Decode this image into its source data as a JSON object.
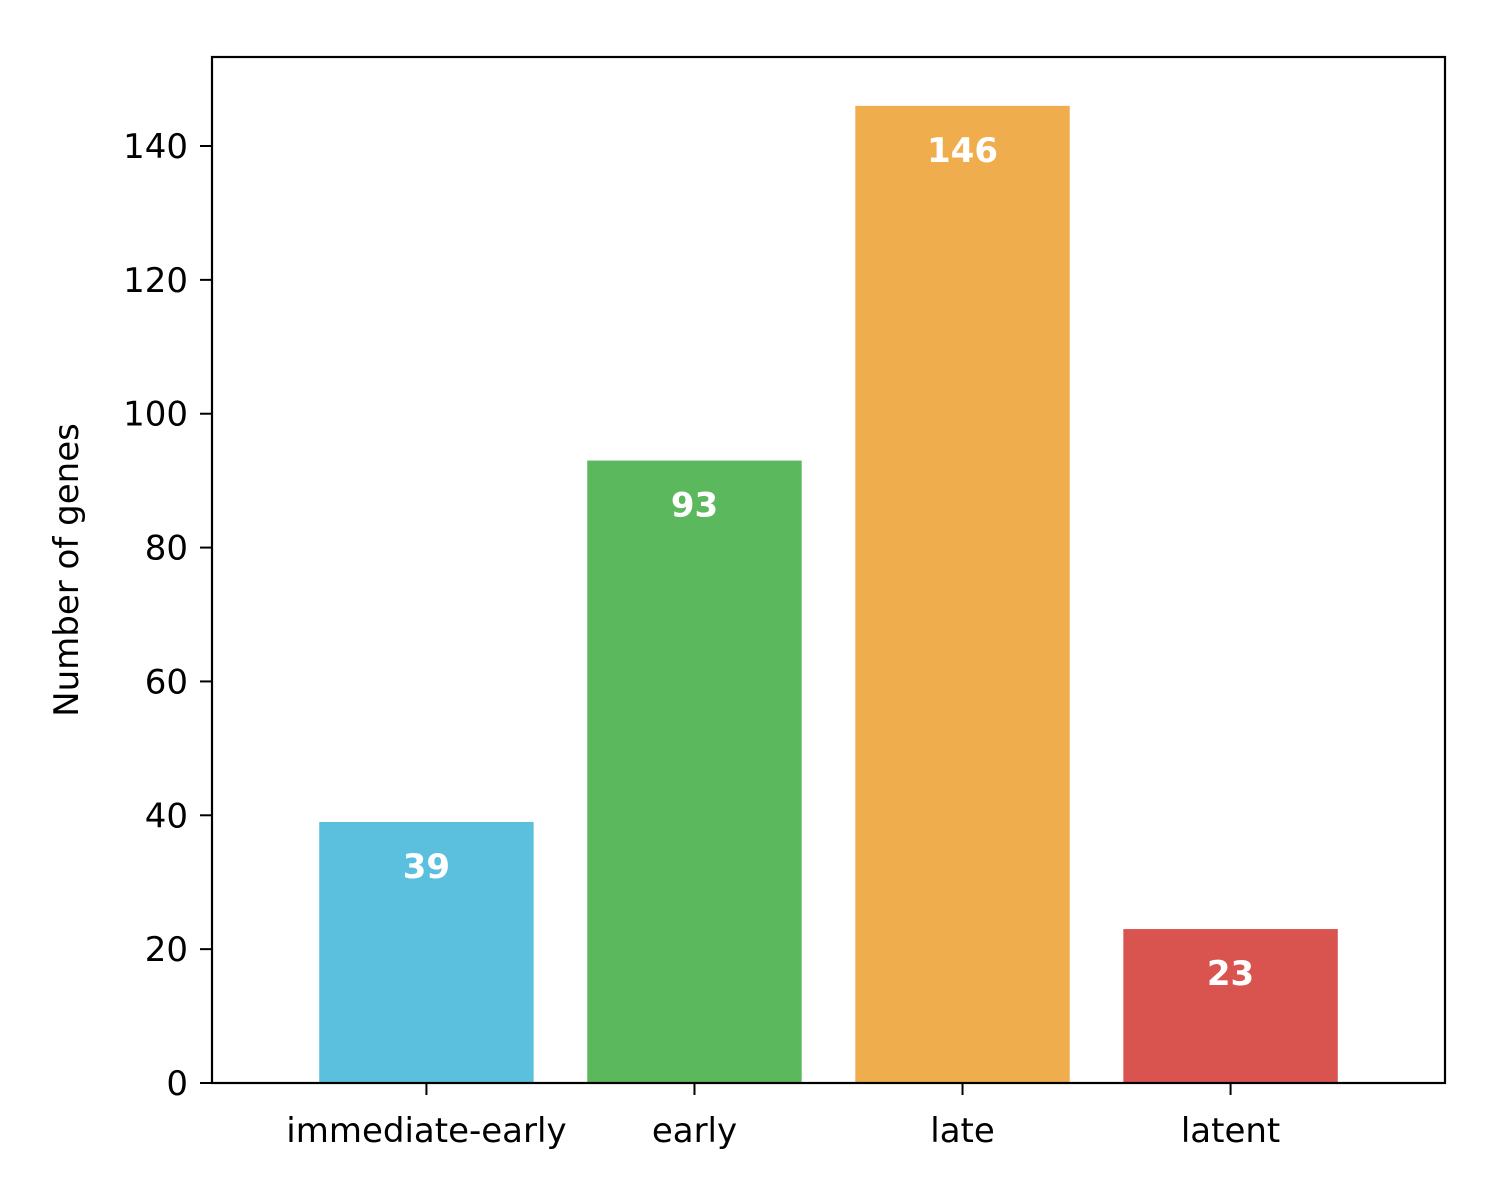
{
  "chart_data": {
    "type": "bar",
    "title": "",
    "xlabel": "",
    "ylabel": "Number of genes",
    "categories": [
      "immediate-early",
      "early",
      "late",
      "latent"
    ],
    "values": [
      39,
      93,
      146,
      23
    ],
    "colors": [
      "#5bc0de",
      "#5cb85c",
      "#f0ad4e",
      "#d9534f"
    ],
    "data_labels": [
      "39",
      "93",
      "146",
      "23"
    ],
    "ylim": [
      0,
      153.3
    ],
    "yticks": [
      0,
      20,
      40,
      60,
      80,
      100,
      120,
      140
    ],
    "grid": false,
    "legend": "none"
  }
}
